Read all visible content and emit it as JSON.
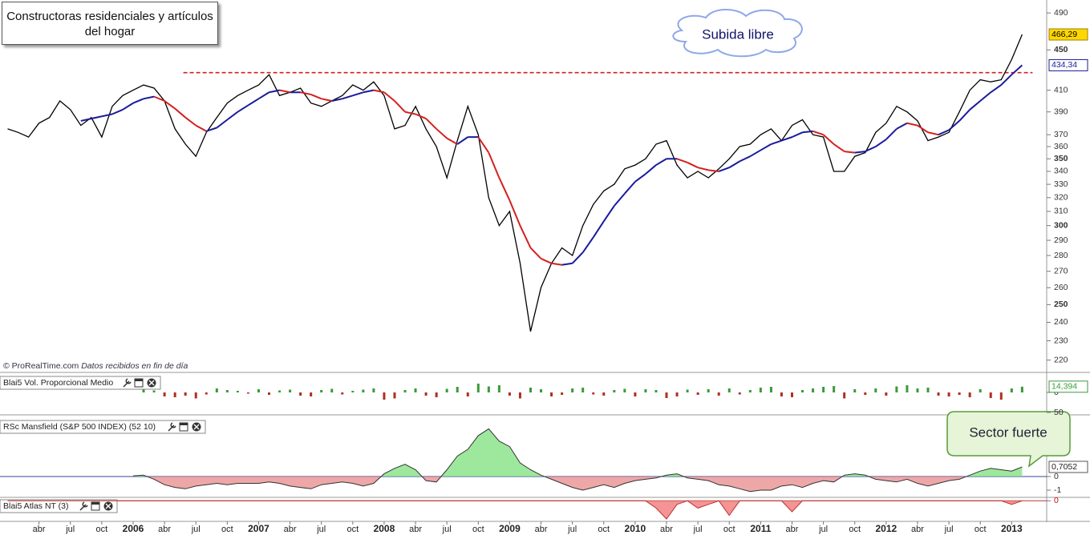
{
  "chart_data": [
    {
      "type": "line",
      "title": "Constructoras residenciales y artículos del hogar",
      "credit": "© ProRealTime.com",
      "credit_note": "Datos recibidos en fin de día",
      "annotations": [
        "Subida libre"
      ],
      "log_scale": true,
      "ylim": [
        215,
        503
      ],
      "xlim": [
        -0.73,
        99.35
      ],
      "yticks": [
        490,
        450,
        410,
        390,
        370,
        360,
        350,
        340,
        330,
        320,
        310,
        300,
        290,
        280,
        270,
        260,
        250,
        240,
        230,
        220
      ],
      "xticks": [
        {
          "value": 3,
          "label": "abr"
        },
        {
          "value": 6,
          "label": "jul"
        },
        {
          "value": 9,
          "label": "oct"
        },
        {
          "value": 12,
          "label": "2006"
        },
        {
          "value": 15,
          "label": "abr"
        },
        {
          "value": 18,
          "label": "jul"
        },
        {
          "value": 21,
          "label": "oct"
        },
        {
          "value": 24,
          "label": "2007"
        },
        {
          "value": 27,
          "label": "abr"
        },
        {
          "value": 30,
          "label": "jul"
        },
        {
          "value": 33,
          "label": "oct"
        },
        {
          "value": 36,
          "label": "2008"
        },
        {
          "value": 39,
          "label": "abr"
        },
        {
          "value": 42,
          "label": "jul"
        },
        {
          "value": 45,
          "label": "oct"
        },
        {
          "value": 48,
          "label": "2009"
        },
        {
          "value": 51,
          "label": "abr"
        },
        {
          "value": 54,
          "label": "jul"
        },
        {
          "value": 57,
          "label": "oct"
        },
        {
          "value": 60,
          "label": "2010"
        },
        {
          "value": 63,
          "label": "abr"
        },
        {
          "value": 66,
          "label": "jul"
        },
        {
          "value": 69,
          "label": "oct"
        },
        {
          "value": 72,
          "label": "2011"
        },
        {
          "value": 75,
          "label": "abr"
        },
        {
          "value": 78,
          "label": "jul"
        },
        {
          "value": 81,
          "label": "oct"
        },
        {
          "value": 84,
          "label": "2012"
        },
        {
          "value": 87,
          "label": "abr"
        },
        {
          "value": 90,
          "label": "jul"
        },
        {
          "value": 93,
          "label": "oct"
        },
        {
          "value": 96,
          "label": "2013"
        }
      ],
      "x": [
        0,
        1,
        2,
        3,
        4,
        5,
        6,
        7,
        8,
        9,
        10,
        11,
        12,
        13,
        14,
        15,
        16,
        17,
        18,
        19,
        20,
        21,
        22,
        23,
        24,
        25,
        26,
        27,
        28,
        29,
        30,
        31,
        32,
        33,
        34,
        35,
        36,
        37,
        38,
        39,
        40,
        41,
        42,
        43,
        44,
        45,
        46,
        47,
        48,
        49,
        50,
        51,
        52,
        53,
        54,
        55,
        56,
        57,
        58,
        59,
        60,
        61,
        62,
        63,
        64,
        65,
        66,
        67,
        68,
        69,
        70,
        71,
        72,
        73,
        74,
        75,
        76,
        77,
        78,
        79,
        80,
        81,
        82,
        83,
        84,
        85,
        86,
        87,
        88,
        89,
        90,
        91,
        92,
        93,
        94,
        95,
        96,
        97
      ],
      "series": [
        {
          "color": "#000000",
          "last": {
            "value": 466.29,
            "label": "466,29"
          },
          "values": [
            375,
            372,
            368,
            380,
            385,
            400,
            392,
            378,
            385,
            368,
            395,
            405,
            410,
            415,
            412,
            400,
            375,
            362,
            352,
            372,
            385,
            398,
            405,
            410,
            415,
            425,
            405,
            408,
            412,
            398,
            395,
            400,
            405,
            415,
            410,
            418,
            405,
            375,
            378,
            395,
            375,
            360,
            335,
            365,
            395,
            370,
            320,
            300,
            310,
            275,
            235,
            260,
            275,
            285,
            280,
            300,
            315,
            325,
            330,
            342,
            345,
            350,
            362,
            365,
            345,
            335,
            340,
            335,
            342,
            350,
            360,
            362,
            370,
            375,
            365,
            378,
            383,
            370,
            368,
            340,
            340,
            352,
            355,
            372,
            380,
            395,
            390,
            382,
            365,
            368,
            372,
            390,
            410,
            420,
            418,
            420,
            440,
            466.29
          ]
        },
        {
          "color": "#1a1a9c",
          "falling_color": "#d42020",
          "last": {
            "value": 434.34,
            "label": "434,34"
          },
          "values": [
            null,
            null,
            null,
            null,
            null,
            null,
            null,
            382,
            384,
            386,
            388,
            392,
            398,
            402,
            404,
            400,
            393,
            385,
            378,
            373,
            376,
            383,
            390,
            396,
            402,
            408,
            410,
            408,
            408,
            406,
            402,
            400,
            402,
            405,
            408,
            410,
            408,
            400,
            390,
            388,
            384,
            375,
            367,
            362,
            368,
            368,
            355,
            335,
            318,
            300,
            285,
            278,
            275,
            274,
            275,
            282,
            292,
            303,
            314,
            323,
            332,
            338,
            345,
            350,
            350,
            347,
            343,
            341,
            340,
            343,
            348,
            352,
            357,
            362,
            365,
            368,
            372,
            373,
            370,
            362,
            356,
            355,
            356,
            360,
            366,
            375,
            380,
            378,
            372,
            370,
            374,
            382,
            392,
            400,
            408,
            415,
            425,
            434.34
          ]
        }
      ],
      "reference_line": {
        "value": 427,
        "x": [
          16.8,
          98
        ],
        "color": "#d42020"
      }
    },
    {
      "type": "bar",
      "title": "Blai5 Vol. Proporcional Medio",
      "ylim": [
        -50,
        40
      ],
      "xlim": [
        -0.73,
        99.35
      ],
      "yticks": [
        0,
        {
          "value": -50,
          "label": "50"
        }
      ],
      "color": "#3a9a3a",
      "negative_color": "#b03020",
      "last": {
        "value": 14.394,
        "label": "14,394"
      },
      "x": [
        0,
        1,
        2,
        3,
        4,
        5,
        6,
        7,
        8,
        9,
        10,
        11,
        12,
        13,
        14,
        15,
        16,
        17,
        18,
        19,
        20,
        21,
        22,
        23,
        24,
        25,
        26,
        27,
        28,
        29,
        30,
        31,
        32,
        33,
        34,
        35,
        36,
        37,
        38,
        39,
        40,
        41,
        42,
        43,
        44,
        45,
        46,
        47,
        48,
        49,
        50,
        51,
        52,
        53,
        54,
        55,
        56,
        57,
        58,
        59,
        60,
        61,
        62,
        63,
        64,
        65,
        66,
        67,
        68,
        69,
        70,
        71,
        72,
        73,
        74,
        75,
        76,
        77,
        78,
        79,
        80,
        81,
        82,
        83,
        84,
        85,
        86,
        87,
        88,
        89,
        90,
        91,
        92,
        93,
        94,
        95,
        96,
        97
      ],
      "values": [
        null,
        null,
        null,
        null,
        null,
        null,
        null,
        null,
        null,
        null,
        null,
        null,
        null,
        8,
        5,
        -10,
        -12,
        -8,
        -15,
        -5,
        10,
        6,
        4,
        -3,
        8,
        -6,
        5,
        7,
        -8,
        -10,
        6,
        9,
        -5,
        4,
        7,
        10,
        -18,
        -15,
        6,
        10,
        -8,
        -12,
        9,
        14,
        -10,
        22,
        15,
        18,
        -8,
        -15,
        12,
        8,
        -10,
        -6,
        10,
        12,
        -5,
        -8,
        6,
        9,
        -10,
        8,
        6,
        -14,
        -10,
        7,
        -6,
        8,
        -8,
        10,
        -5,
        6,
        12,
        14,
        -10,
        -12,
        6,
        10,
        14,
        16,
        -15,
        8,
        -6,
        10,
        -8,
        15,
        18,
        10,
        12,
        -8,
        -10,
        -6,
        -12,
        8,
        -14,
        -18,
        10,
        14.394
      ]
    },
    {
      "type": "area",
      "title": "RSc Mansfield (S&P 500 INDEX) (52 10)",
      "annotations": [
        "Sector fuerte"
      ],
      "ylim": [
        -1.47,
        4.29
      ],
      "xlim": [
        -0.73,
        99.35
      ],
      "yticks": [
        0,
        -1
      ],
      "color": "#7ee07e",
      "negative_color": "#e88a8a",
      "line_color": "#333333",
      "zero_color": "#334499",
      "last": {
        "value": 0.7052,
        "label": "0,7052"
      },
      "x": [
        0,
        1,
        2,
        3,
        4,
        5,
        6,
        7,
        8,
        9,
        10,
        11,
        12,
        13,
        14,
        15,
        16,
        17,
        18,
        19,
        20,
        21,
        22,
        23,
        24,
        25,
        26,
        27,
        28,
        29,
        30,
        31,
        32,
        33,
        34,
        35,
        36,
        37,
        38,
        39,
        40,
        41,
        42,
        43,
        44,
        45,
        46,
        47,
        48,
        49,
        50,
        51,
        52,
        53,
        54,
        55,
        56,
        57,
        58,
        59,
        60,
        61,
        62,
        63,
        64,
        65,
        66,
        67,
        68,
        69,
        70,
        71,
        72,
        73,
        74,
        75,
        76,
        77,
        78,
        79,
        80,
        81,
        82,
        83,
        84,
        85,
        86,
        87,
        88,
        89,
        90,
        91,
        92,
        93,
        94,
        95,
        96,
        97
      ],
      "values": [
        null,
        null,
        null,
        null,
        null,
        null,
        null,
        null,
        null,
        null,
        null,
        null,
        0.05,
        0.1,
        -0.2,
        -0.6,
        -0.8,
        -0.9,
        -0.7,
        -0.6,
        -0.5,
        -0.6,
        -0.5,
        -0.5,
        -0.5,
        -0.4,
        -0.5,
        -0.7,
        -0.8,
        -0.9,
        -0.6,
        -0.5,
        -0.4,
        -0.5,
        -0.7,
        -0.5,
        0.2,
        0.6,
        0.9,
        0.5,
        -0.3,
        -0.4,
        0.5,
        1.5,
        2.0,
        3.0,
        3.5,
        2.6,
        2.2,
        1.0,
        0.5,
        0.1,
        -0.2,
        -0.5,
        -0.8,
        -1.0,
        -0.8,
        -0.6,
        -0.8,
        -0.5,
        -0.3,
        -0.2,
        -0.1,
        0.1,
        0.2,
        -0.1,
        -0.2,
        -0.3,
        -0.6,
        -0.7,
        -0.9,
        -1.1,
        -1.0,
        -1.0,
        -0.7,
        -0.6,
        -0.8,
        -0.5,
        -0.3,
        -0.4,
        0.1,
        0.2,
        0.1,
        -0.2,
        -0.3,
        -0.4,
        -0.2,
        -0.5,
        -0.7,
        -0.5,
        -0.3,
        -0.2,
        0.1,
        0.4,
        0.6,
        0.5,
        0.4,
        0.7052
      ]
    },
    {
      "type": "area",
      "title": "Blai5 Atlas NT (3)",
      "ylim": [
        -2.6,
        0.25
      ],
      "xlim": [
        -0.73,
        99.35
      ],
      "yticks": [
        0
      ],
      "color": "#7ee07e",
      "negative_color": "#f07070",
      "line_color": "#c03030",
      "zero_color": "#c03030",
      "tick_color": "#d01010",
      "x": [
        0,
        1,
        2,
        3,
        4,
        5,
        6,
        7,
        8,
        9,
        10,
        11,
        12,
        13,
        14,
        15,
        16,
        17,
        18,
        19,
        20,
        21,
        22,
        23,
        24,
        25,
        26,
        27,
        28,
        29,
        30,
        31,
        32,
        33,
        34,
        35,
        36,
        37,
        38,
        39,
        40,
        41,
        42,
        43,
        44,
        45,
        46,
        47,
        48,
        49,
        50,
        51,
        52,
        53,
        54,
        55,
        56,
        57,
        58,
        59,
        60,
        61,
        62,
        63,
        64,
        65,
        66,
        67,
        68,
        69,
        70,
        71,
        72,
        73,
        74,
        75,
        76,
        77,
        78,
        79,
        80,
        81,
        82,
        83,
        84,
        85,
        86,
        87,
        88,
        89,
        90,
        91,
        92,
        93,
        94,
        95,
        96,
        97
      ],
      "values": [
        0,
        0,
        0,
        0,
        0,
        0,
        0,
        0,
        0,
        0,
        0,
        0,
        0,
        0,
        0,
        0,
        0,
        0,
        0,
        0,
        0,
        0,
        0,
        0,
        0,
        0,
        0,
        0,
        0,
        0,
        0,
        0,
        0,
        0,
        0,
        0,
        0,
        0,
        0,
        0,
        0,
        0,
        0,
        0,
        0,
        0,
        0,
        0,
        0,
        0,
        0,
        0,
        0,
        0,
        0,
        0,
        0,
        0,
        0,
        0,
        0,
        0,
        -1,
        -2.5,
        -0.5,
        0,
        -1,
        -0.5,
        0,
        -2,
        0,
        0,
        0,
        0,
        0,
        -1.5,
        0,
        0,
        0,
        0,
        0,
        0,
        0,
        0,
        0,
        0,
        0,
        0,
        0,
        0,
        0,
        0,
        0,
        0,
        0,
        0,
        -0.5,
        0
      ]
    }
  ]
}
